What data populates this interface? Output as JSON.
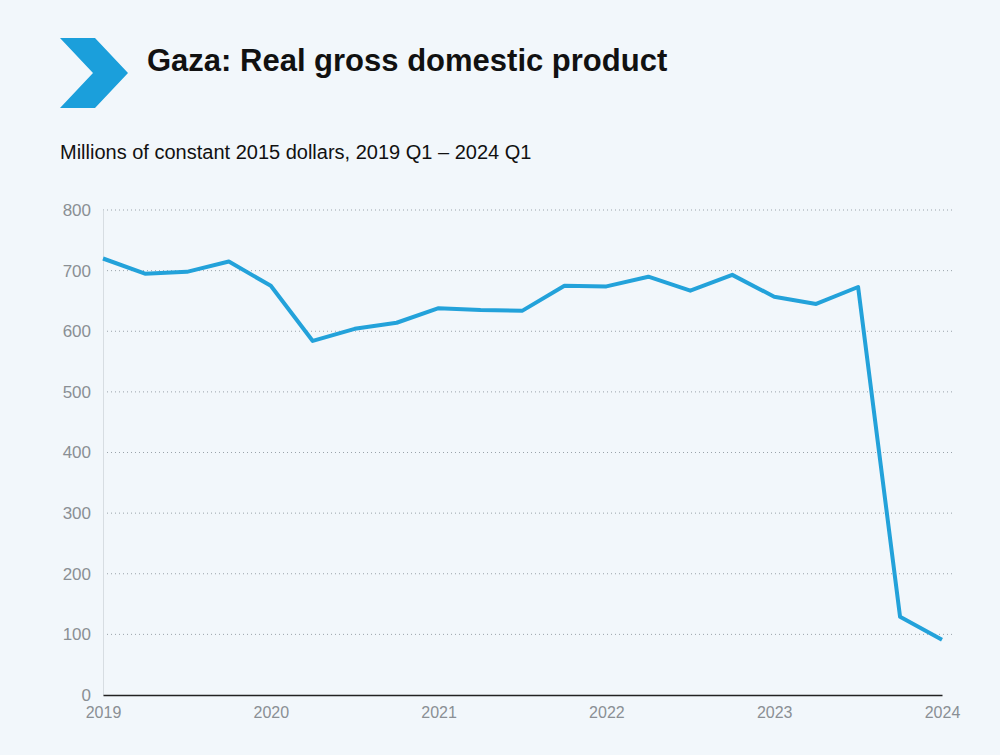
{
  "chart_data": {
    "type": "line",
    "title": "Gaza: Real gross domestic product",
    "subtitle": "Millions of constant 2015 dollars, 2019 Q1 – 2024 Q1",
    "categories": [
      "2019",
      null,
      null,
      null,
      "2020",
      null,
      null,
      null,
      "2021",
      null,
      null,
      null,
      "2022",
      null,
      null,
      null,
      "2023",
      null,
      null,
      null,
      "2024"
    ],
    "values": [
      720,
      695,
      698,
      715,
      675,
      584,
      604,
      614,
      638,
      635,
      634,
      675,
      674,
      690,
      667,
      693,
      657,
      645,
      673,
      129,
      91
    ],
    "color": "#23a2da",
    "ylim": [
      0,
      800
    ],
    "yticks": [
      0,
      100,
      200,
      300,
      400,
      500,
      600,
      700,
      800
    ],
    "grid": true
  }
}
